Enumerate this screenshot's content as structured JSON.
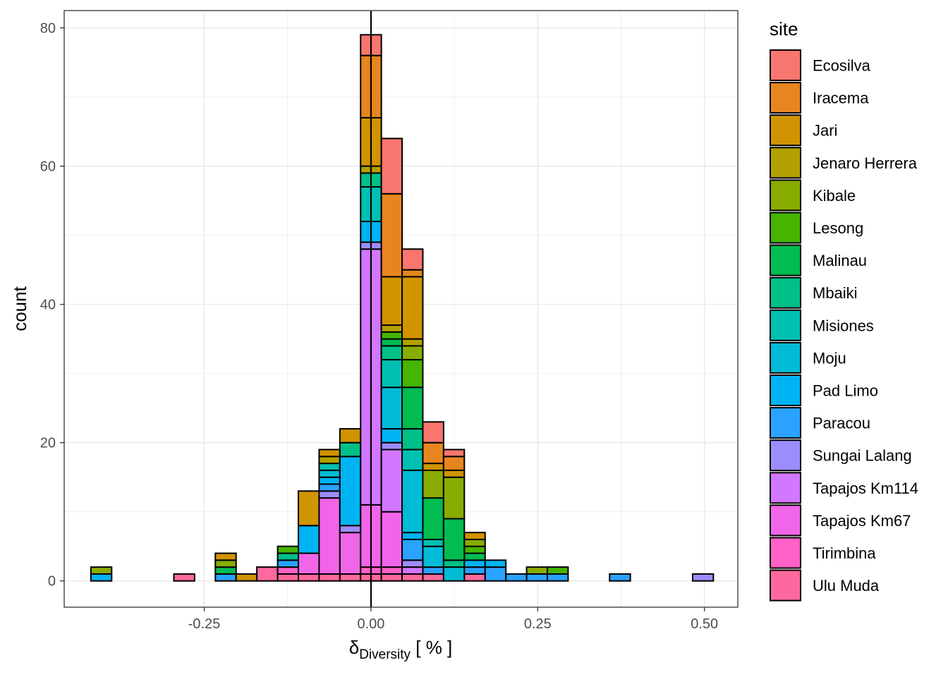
{
  "chart_data": {
    "type": "bar",
    "subtype": "stacked-histogram",
    "ylabel": "count",
    "xlabel_main": "δ",
    "xlabel_sub": "Diversity",
    "xlabel_unit": " [ % ]",
    "xlim": [
      -0.46,
      0.55
    ],
    "ylim": [
      -3.8,
      82.5
    ],
    "x_ticks": [
      -0.25,
      0.0,
      0.25,
      0.5
    ],
    "x_tick_labels": [
      "-0.25",
      "0.00",
      "0.25",
      "0.50"
    ],
    "y_ticks": [
      0,
      20,
      40,
      60,
      80
    ],
    "y_tick_labels": [
      "0",
      "20",
      "40",
      "60",
      "80"
    ],
    "vline_x": 0.0,
    "grid": true,
    "legend_title": "site",
    "legend_position": "right",
    "bin_width": 0.0311,
    "bin_centers": [
      -0.4044,
      -0.3733,
      -0.3422,
      -0.3111,
      -0.28,
      -0.2489,
      -0.2178,
      -0.1867,
      -0.1556,
      -0.1244,
      -0.0933,
      -0.0622,
      -0.0311,
      0.0,
      0.0311,
      0.0622,
      0.0933,
      0.1244,
      0.1556,
      0.1867,
      0.2178,
      0.2489,
      0.28,
      0.3111,
      0.3422,
      0.3733,
      0.4044,
      0.4356,
      0.4667,
      0.4978
    ],
    "sites": [
      "Ecosilva",
      "Iracema",
      "Jari",
      "Jenaro Herrera",
      "Kibale",
      "Lesong",
      "Malinau",
      "Mbaiki",
      "Misiones",
      "Moju",
      "Pad Limo",
      "Paracou",
      "Sungai Lalang",
      "Tapajos Km114",
      "Tapajos Km67",
      "Tirimbina",
      "Ulu Muda"
    ],
    "colors": [
      "#F8766D",
      "#E7851E",
      "#D09400",
      "#B2A100",
      "#89AC00",
      "#45B500",
      "#00BC51",
      "#00C087",
      "#00C0B2",
      "#00BCD6",
      "#00B3F2",
      "#29A3FF",
      "#9C8DFF",
      "#D277FF",
      "#F166E8",
      "#FF61C7",
      "#FF689E"
    ],
    "series": [
      {
        "name": "Ecosilva",
        "values": [
          0,
          0,
          0,
          0,
          0,
          0,
          0,
          0,
          0,
          0,
          0,
          0,
          0,
          3,
          8,
          3,
          3,
          1,
          0,
          0,
          0,
          0,
          0,
          0,
          0,
          0,
          0,
          0,
          0,
          0
        ]
      },
      {
        "name": "Iracema",
        "values": [
          0,
          0,
          0,
          0,
          0,
          0,
          0,
          0,
          0,
          0,
          0,
          0,
          0,
          9,
          12,
          1,
          3,
          2,
          0,
          0,
          0,
          0,
          0,
          0,
          0,
          0,
          0,
          0,
          0,
          0
        ]
      },
      {
        "name": "Jari",
        "values": [
          0,
          0,
          0,
          0,
          0,
          0,
          1,
          1,
          0,
          0,
          5,
          1,
          2,
          7,
          7,
          9,
          1,
          1,
          1,
          0,
          0,
          0,
          0,
          0,
          0,
          0,
          0,
          0,
          0,
          0
        ]
      },
      {
        "name": "Jenaro Herrera",
        "values": [
          0,
          0,
          0,
          0,
          0,
          0,
          0,
          0,
          0,
          0,
          0,
          1,
          0,
          1,
          1,
          1,
          0,
          0,
          0,
          0,
          0,
          0,
          0,
          0,
          0,
          0,
          0,
          0,
          0,
          0
        ]
      },
      {
        "name": "Kibale",
        "values": [
          1,
          0,
          0,
          0,
          0,
          0,
          1,
          0,
          0,
          0,
          0,
          0,
          0,
          0,
          0,
          2,
          4,
          6,
          1,
          0,
          0,
          1,
          0,
          0,
          0,
          0,
          0,
          0,
          0,
          0
        ]
      },
      {
        "name": "Lesong",
        "values": [
          0,
          0,
          0,
          0,
          0,
          0,
          0,
          0,
          0,
          1,
          0,
          0,
          0,
          0,
          1,
          4,
          0,
          0,
          1,
          0,
          0,
          0,
          1,
          0,
          0,
          0,
          0,
          0,
          0,
          0
        ]
      },
      {
        "name": "Malinau",
        "values": [
          0,
          0,
          0,
          0,
          0,
          0,
          1,
          0,
          0,
          0,
          0,
          0,
          0,
          0,
          1,
          6,
          6,
          6,
          1,
          0,
          0,
          0,
          0,
          0,
          0,
          0,
          0,
          0,
          0,
          0
        ]
      },
      {
        "name": "Mbaiki",
        "values": [
          0,
          0,
          0,
          0,
          0,
          0,
          0,
          0,
          0,
          1,
          0,
          0,
          2,
          2,
          2,
          3,
          0,
          1,
          0,
          0,
          0,
          0,
          0,
          0,
          0,
          0,
          0,
          0,
          0,
          0
        ]
      },
      {
        "name": "Misiones",
        "values": [
          0,
          0,
          0,
          0,
          0,
          0,
          0,
          0,
          0,
          0,
          0,
          1,
          0,
          5,
          4,
          3,
          1,
          0,
          0,
          0,
          0,
          0,
          0,
          0,
          0,
          0,
          0,
          0,
          0,
          0
        ]
      },
      {
        "name": "Moju",
        "values": [
          0,
          0,
          0,
          0,
          0,
          0,
          0,
          0,
          0,
          0,
          0,
          1,
          0,
          0,
          6,
          9,
          3,
          2,
          0,
          0,
          0,
          0,
          0,
          0,
          0,
          0,
          0,
          0,
          0,
          0
        ]
      },
      {
        "name": "Pad Limo",
        "values": [
          1,
          0,
          0,
          0,
          0,
          0,
          0,
          0,
          0,
          0,
          4,
          1,
          10,
          3,
          2,
          1,
          0,
          0,
          1,
          1,
          0,
          0,
          0,
          0,
          0,
          0,
          0,
          0,
          0,
          0
        ]
      },
      {
        "name": "Paracou",
        "values": [
          0,
          0,
          0,
          0,
          0,
          0,
          1,
          0,
          0,
          1,
          0,
          1,
          0,
          0,
          0,
          3,
          1,
          0,
          1,
          2,
          1,
          1,
          1,
          0,
          0,
          1,
          0,
          0,
          0,
          0
        ]
      },
      {
        "name": "Sungai Lalang",
        "values": [
          0,
          0,
          0,
          0,
          0,
          0,
          0,
          0,
          0,
          0,
          0,
          1,
          1,
          1,
          1,
          1,
          0,
          0,
          0,
          0,
          0,
          0,
          0,
          0,
          0,
          0,
          0,
          0,
          0,
          1
        ]
      },
      {
        "name": "Tapajos Km114",
        "values": [
          0,
          0,
          0,
          0,
          0,
          0,
          0,
          0,
          0,
          0,
          0,
          0,
          0,
          37,
          9,
          1,
          0,
          0,
          0,
          0,
          0,
          0,
          0,
          0,
          0,
          0,
          0,
          0,
          0,
          0
        ]
      },
      {
        "name": "Tapajos Km67",
        "values": [
          0,
          0,
          0,
          0,
          0,
          0,
          0,
          0,
          0,
          0,
          3,
          11,
          6,
          9,
          8,
          0,
          0,
          0,
          0,
          0,
          0,
          0,
          0,
          0,
          0,
          0,
          0,
          0,
          0,
          0
        ]
      },
      {
        "name": "Tirimbina",
        "values": [
          0,
          0,
          0,
          0,
          0,
          0,
          0,
          0,
          0,
          1,
          0,
          0,
          0,
          1,
          1,
          0,
          0,
          0,
          0,
          0,
          0,
          0,
          0,
          0,
          0,
          0,
          0,
          0,
          0,
          0
        ]
      },
      {
        "name": "Ulu Muda",
        "values": [
          0,
          0,
          0,
          0,
          1,
          0,
          0,
          0,
          2,
          1,
          1,
          1,
          1,
          1,
          1,
          1,
          1,
          0,
          1,
          0,
          0,
          0,
          0,
          0,
          0,
          0,
          0,
          0,
          0,
          0
        ]
      }
    ]
  }
}
